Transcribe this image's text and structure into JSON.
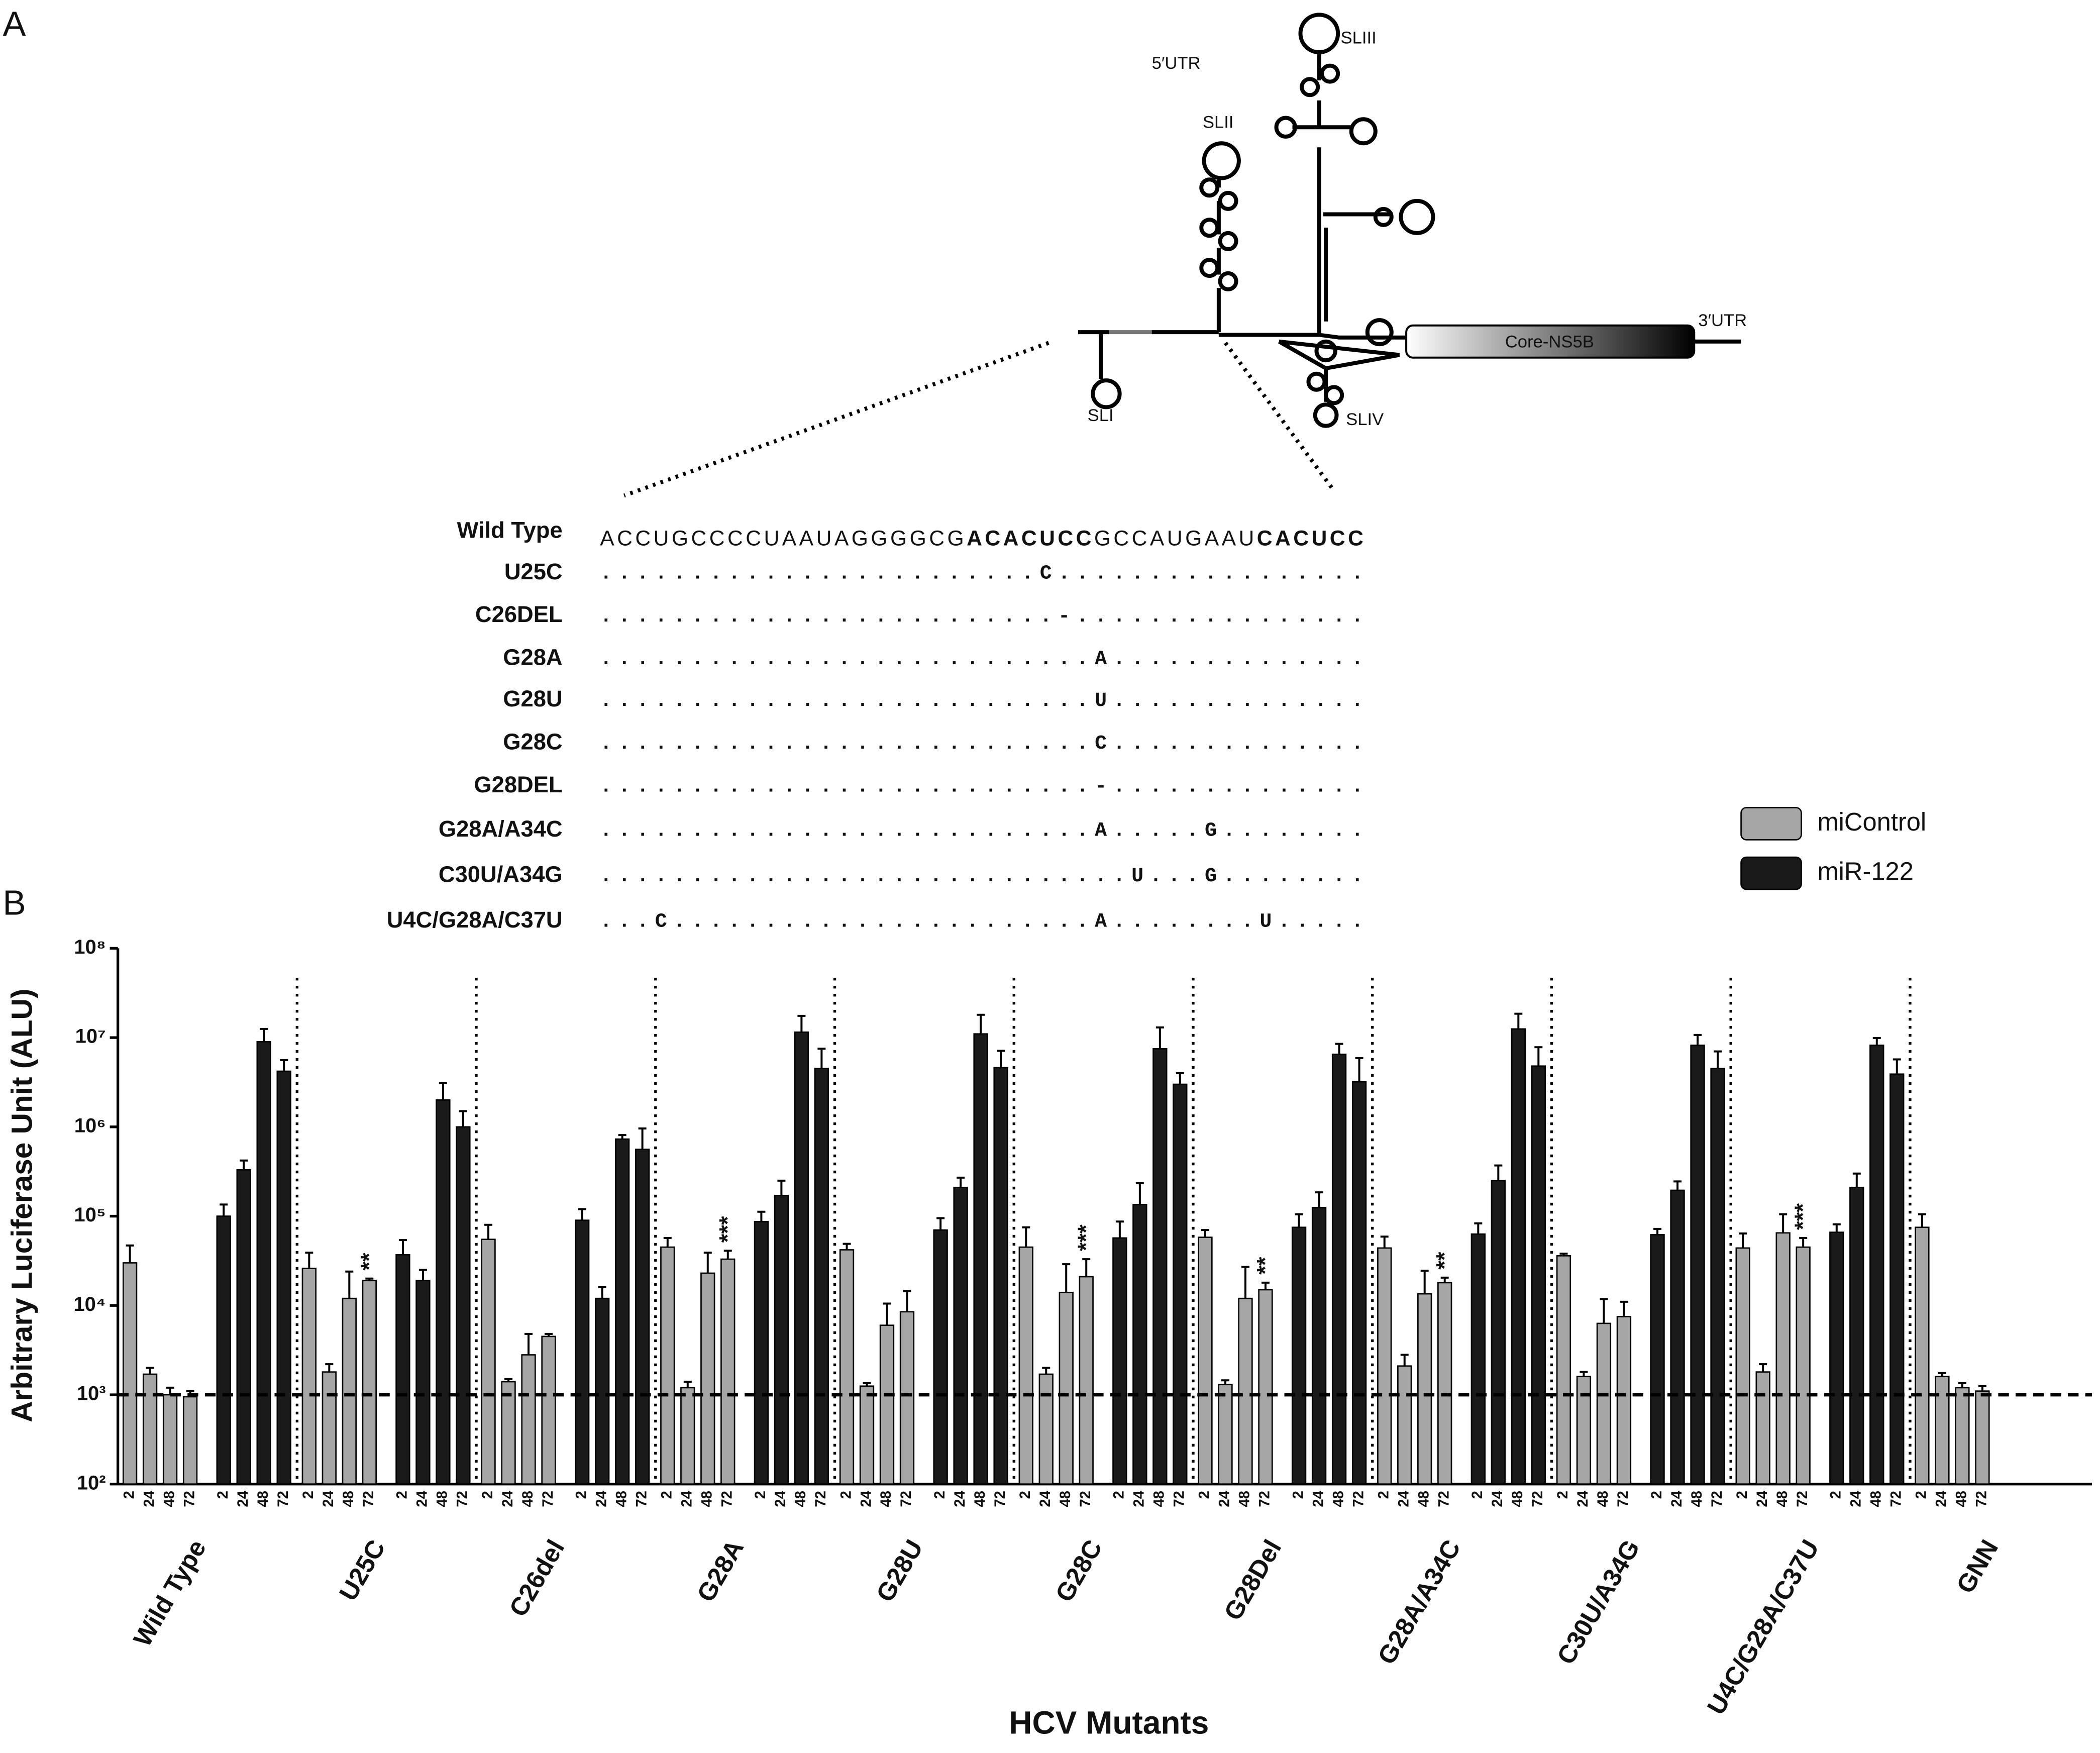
{
  "panel_labels": {
    "a": "A",
    "b": "B"
  },
  "diagram": {
    "utr5": "5′UTR",
    "sl1": "SLI",
    "sl2": "SLII",
    "sl3": "SLIII",
    "sl4": "SLIV",
    "coding": "Core-NS5B",
    "utr3": "3′UTR"
  },
  "alignment": {
    "wild_type": {
      "name": "Wild Type",
      "segments": [
        "ACCUGCCCCUAAUAGGGGCG",
        "ACACUCC",
        "GCCAUGAAU",
        "CACUCC"
      ]
    },
    "mutants": [
      {
        "name": "U25C",
        "sequence": "........................C................."
      },
      {
        "name": "C26DEL",
        "sequence": ".........................-................"
      },
      {
        "name": "G28A",
        "sequence": "...........................A.............."
      },
      {
        "name": "G28U",
        "sequence": "...........................U.............."
      },
      {
        "name": "G28C",
        "sequence": "...........................C.............."
      },
      {
        "name": "G28DEL",
        "sequence": "...........................-.............."
      },
      {
        "name": "G28A/A34C",
        "sequence": "...........................A.....G........"
      },
      {
        "name": "C30U/A34G",
        "sequence": ".............................U...G........"
      },
      {
        "name": "U4C/G28A/C37U",
        "sequence": "...C.......................A........U....."
      }
    ]
  },
  "chart_data": {
    "type": "bar",
    "log_scale": true,
    "y_label": "Arbitrary Luciferase Unit (ALU)",
    "x_label": "HCV Mutants",
    "categories": [
      "Wild Type",
      "U25C",
      "C26del",
      "G28A",
      "G28U",
      "G28C",
      "G28Del",
      "G28A/A34C",
      "C30U/A34G",
      "U4C/G28A/C37U",
      "GNN"
    ],
    "timepoints": [
      "2",
      "24",
      "48",
      "72"
    ],
    "ylim": [
      100,
      100000000
    ],
    "yticks": [
      {
        "value": 100,
        "label": "10²"
      },
      {
        "value": 1000,
        "label": "10³"
      },
      {
        "value": 10000,
        "label": "10⁴"
      },
      {
        "value": 100000,
        "label": "10⁵"
      },
      {
        "value": 1000000,
        "label": "10⁶"
      },
      {
        "value": 10000000,
        "label": "10⁷"
      },
      {
        "value": 100000000,
        "label": "10⁸"
      }
    ],
    "reference_line": 1000,
    "legend": "right",
    "series": [
      {
        "name": "miControl",
        "color": "#a6a6a6",
        "values": [
          [
            30000,
            1700,
            1000,
            950
          ],
          [
            26000,
            1800,
            12000,
            19000
          ],
          [
            55000,
            1400,
            2800,
            4500
          ],
          [
            45000,
            1200,
            23000,
            33000
          ],
          [
            42000,
            1250,
            6000,
            8500
          ],
          [
            45000,
            1700,
            14000,
            21000
          ],
          [
            58000,
            1300,
            12000,
            15000
          ],
          [
            44000,
            2100,
            13500,
            18000
          ],
          [
            36000,
            1600,
            6300,
            7500
          ],
          [
            44000,
            1800,
            65000,
            45000
          ],
          [
            75000,
            1600,
            1200,
            1100
          ]
        ],
        "errors": [
          [
            17000,
            300,
            200,
            150
          ],
          [
            13000,
            400,
            12000,
            1000
          ],
          [
            25000,
            100,
            2000,
            300
          ],
          [
            12000,
            200,
            16000,
            8000
          ],
          [
            7000,
            100,
            4500,
            6000
          ],
          [
            30000,
            300,
            15000,
            12000
          ],
          [
            12000,
            150,
            15000,
            3000
          ],
          [
            15000,
            700,
            11000,
            2500
          ],
          [
            2000,
            200,
            5500,
            3500
          ],
          [
            20000,
            400,
            40000,
            12000
          ],
          [
            30000,
            150,
            150,
            150
          ]
        ]
      },
      {
        "name": "miR-122",
        "color": "#1a1a1a",
        "values": [
          [
            100000,
            330000,
            9000000,
            4200000
          ],
          [
            37000,
            19000,
            2000000,
            1000000
          ],
          [
            90000,
            12000,
            730000,
            560000
          ],
          [
            87000,
            170000,
            11500000,
            4500000
          ],
          [
            70000,
            210000,
            11000000,
            4600000
          ],
          [
            57000,
            135000,
            7500000,
            3000000
          ],
          [
            75000,
            125000,
            6500000,
            3200000
          ],
          [
            63000,
            250000,
            12500000,
            4800000
          ],
          [
            62000,
            195000,
            8200000,
            4500000
          ],
          [
            66000,
            210000,
            8200000,
            3900000
          ],
          [
            null,
            null,
            null,
            null
          ]
        ],
        "errors": [
          [
            35000,
            90000,
            3500000,
            1400000
          ],
          [
            17000,
            6000,
            1100000,
            500000
          ],
          [
            30000,
            4000,
            80000,
            400000
          ],
          [
            25000,
            80000,
            6000000,
            3000000
          ],
          [
            25000,
            60000,
            7000000,
            2500000
          ],
          [
            30000,
            100000,
            5500000,
            1000000
          ],
          [
            30000,
            60000,
            2000000,
            2700000
          ],
          [
            20000,
            120000,
            6000000,
            3000000
          ],
          [
            10000,
            50000,
            2500000,
            2500000
          ],
          [
            15000,
            90000,
            1700000,
            1800000
          ],
          [
            null,
            null,
            null,
            null
          ]
        ]
      }
    ],
    "significance": [
      null,
      "**",
      null,
      "***",
      null,
      "***",
      "**",
      "**",
      null,
      "***",
      null
    ]
  }
}
